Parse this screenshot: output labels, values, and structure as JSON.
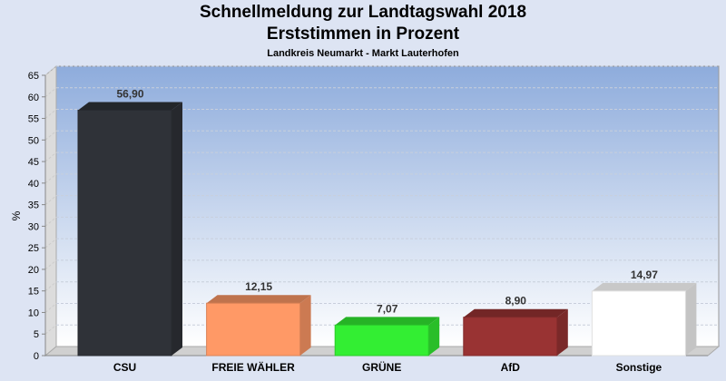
{
  "chart_data": {
    "type": "bar",
    "title": "Schnellmeldung zur Landtagswahl 2018",
    "subtitle": "Erststimmen in Prozent",
    "subsubtitle": "Landkreis Neumarkt - Markt Lauterhofen",
    "xlabel": "",
    "ylabel": "%",
    "ylim": [
      0,
      65
    ],
    "yticks": [
      0,
      5,
      10,
      15,
      20,
      25,
      30,
      35,
      40,
      45,
      50,
      55,
      60,
      65
    ],
    "grid": true,
    "categories": [
      "CSU",
      "FREIE WÄHLER",
      "GRÜNE",
      "AfD",
      "Sonstige"
    ],
    "values": [
      56.9,
      12.15,
      7.07,
      8.9,
      14.97
    ],
    "value_labels": [
      "56,90",
      "12,15",
      "7,07",
      "8,90",
      "14,97"
    ],
    "colors": [
      "#2f3238",
      "#ff9966",
      "#33ee33",
      "#993333",
      "#ffffff"
    ]
  }
}
